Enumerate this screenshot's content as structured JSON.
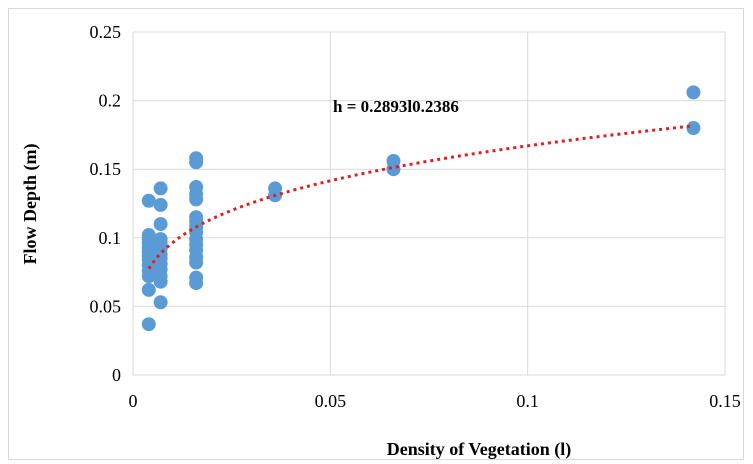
{
  "chart_data": {
    "type": "scatter",
    "title": "",
    "xlabel": "Density of Vegetation (l)",
    "ylabel": "Flow Depth (m)",
    "xlim": [
      0,
      0.15
    ],
    "ylim": [
      0,
      0.25
    ],
    "x_ticks": [
      "0",
      "0.05",
      "0.1",
      "0.15"
    ],
    "y_ticks": [
      "0",
      "0.05",
      "0.1",
      "0.15",
      "0.2",
      "0.25"
    ],
    "grid": true,
    "legend": "none",
    "marker_color": "#5b9bd5",
    "trendline_color": "#e02020",
    "trendline": {
      "type": "power",
      "coefficient": 0.2893,
      "exponent": 0.2386,
      "x_range": [
        0.004,
        0.142
      ],
      "label": "h = 0.2893l0.2386"
    },
    "points": [
      [
        0.004,
        0.037
      ],
      [
        0.004,
        0.062
      ],
      [
        0.004,
        0.072
      ],
      [
        0.004,
        0.076
      ],
      [
        0.004,
        0.08
      ],
      [
        0.004,
        0.084
      ],
      [
        0.004,
        0.087
      ],
      [
        0.004,
        0.09
      ],
      [
        0.004,
        0.093
      ],
      [
        0.004,
        0.096
      ],
      [
        0.004,
        0.099
      ],
      [
        0.004,
        0.102
      ],
      [
        0.004,
        0.127
      ],
      [
        0.007,
        0.053
      ],
      [
        0.007,
        0.068
      ],
      [
        0.007,
        0.072
      ],
      [
        0.007,
        0.077
      ],
      [
        0.007,
        0.081
      ],
      [
        0.007,
        0.085
      ],
      [
        0.007,
        0.088
      ],
      [
        0.007,
        0.092
      ],
      [
        0.007,
        0.096
      ],
      [
        0.007,
        0.099
      ],
      [
        0.007,
        0.11
      ],
      [
        0.007,
        0.124
      ],
      [
        0.007,
        0.136
      ],
      [
        0.016,
        0.067
      ],
      [
        0.016,
        0.071
      ],
      [
        0.016,
        0.082
      ],
      [
        0.016,
        0.086
      ],
      [
        0.016,
        0.091
      ],
      [
        0.016,
        0.095
      ],
      [
        0.016,
        0.099
      ],
      [
        0.016,
        0.104
      ],
      [
        0.016,
        0.108
      ],
      [
        0.016,
        0.112
      ],
      [
        0.016,
        0.115
      ],
      [
        0.016,
        0.128
      ],
      [
        0.016,
        0.132
      ],
      [
        0.016,
        0.137
      ],
      [
        0.016,
        0.155
      ],
      [
        0.016,
        0.158
      ],
      [
        0.036,
        0.131
      ],
      [
        0.036,
        0.136
      ],
      [
        0.066,
        0.15
      ],
      [
        0.066,
        0.156
      ],
      [
        0.142,
        0.18
      ],
      [
        0.142,
        0.206
      ]
    ]
  }
}
